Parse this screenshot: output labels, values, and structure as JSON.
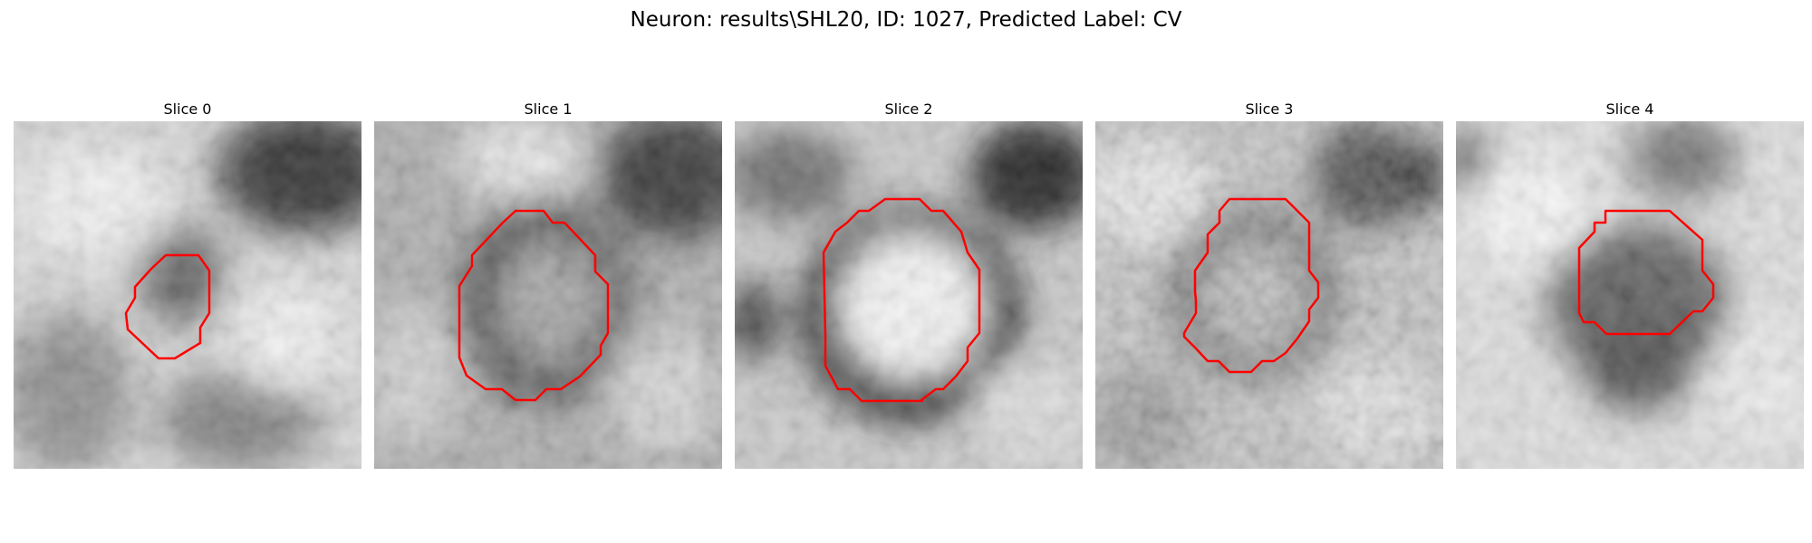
{
  "figure": {
    "title": "Neuron: results\\SHL20, ID: 1027, Predicted Label: CV"
  },
  "panels": [
    {
      "title": "Slice 0"
    },
    {
      "title": "Slice 1"
    },
    {
      "title": "Slice 2"
    },
    {
      "title": "Slice 3"
    },
    {
      "title": "Slice 4"
    }
  ],
  "colors": {
    "contour": "#ff0000",
    "background": "#ffffff"
  }
}
